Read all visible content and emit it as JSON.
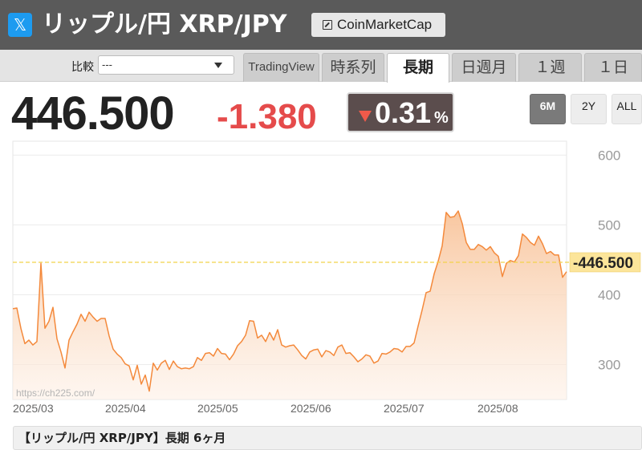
{
  "header": {
    "x_icon_glyph": "𝕏",
    "title": "リップル/円 XRP/JPY",
    "cmc_label": "CoinMarketCap"
  },
  "toolbar": {
    "compare_label": "比較",
    "compare_value": "---",
    "tabs": [
      {
        "label": "TradingView",
        "active": false
      },
      {
        "label": "時系列",
        "active": false
      },
      {
        "label": "長期",
        "active": true
      },
      {
        "label": "日週月",
        "active": false
      },
      {
        "label": "１週",
        "active": false
      },
      {
        "label": "１日",
        "active": false
      }
    ]
  },
  "quote": {
    "price": "446.500",
    "change": "-1.380",
    "pct": "0.31",
    "pct_unit": "%"
  },
  "ranges": [
    {
      "label": "6M",
      "active": true
    },
    {
      "label": "2Y",
      "active": false
    },
    {
      "label": "ALL",
      "active": false
    }
  ],
  "colors": {
    "line": "#f4893b",
    "fill_top": "#f9c9a2",
    "current_line": "#f2d34a",
    "current_label_bg": "#fce59a",
    "down": "#e54b4b"
  },
  "chart_data": {
    "type": "area",
    "ylim": [
      250,
      620
    ],
    "yticks": [
      300,
      400,
      500,
      600
    ],
    "xticks": [
      "2025/03",
      "2025/04",
      "2025/05",
      "2025/06",
      "2025/07",
      "2025/08"
    ],
    "current_value": 446.5,
    "current_label": "446.500",
    "grid": true,
    "values": [
      380,
      381,
      352,
      330,
      335,
      328,
      333,
      445,
      352,
      362,
      382,
      337,
      318,
      295,
      335,
      347,
      358,
      372,
      362,
      375,
      368,
      362,
      366,
      366,
      341,
      322,
      315,
      310,
      301,
      298,
      278,
      299,
      272,
      285,
      262,
      302,
      292,
      302,
      306,
      293,
      305,
      297,
      294,
      295,
      294,
      297,
      310,
      306,
      316,
      317,
      312,
      323,
      316,
      315,
      307,
      315,
      327,
      333,
      342,
      363,
      362,
      338,
      342,
      333,
      346,
      335,
      350,
      328,
      325,
      327,
      328,
      321,
      313,
      308,
      318,
      321,
      322,
      311,
      320,
      318,
      313,
      325,
      328,
      316,
      317,
      311,
      304,
      308,
      314,
      312,
      302,
      305,
      316,
      315,
      318,
      323,
      322,
      318,
      326,
      326,
      331,
      355,
      378,
      403,
      405,
      430,
      448,
      470,
      518,
      511,
      512,
      520,
      502,
      475,
      465,
      465,
      472,
      469,
      464,
      469,
      460,
      455,
      426,
      445,
      449,
      447,
      456,
      487,
      482,
      475,
      471,
      484,
      473,
      459,
      462,
      457,
      457,
      425,
      433
    ]
  },
  "source_url": "https://ch225.com/",
  "caption": "【リップル/円 XRP/JPY】長期 6ヶ月"
}
